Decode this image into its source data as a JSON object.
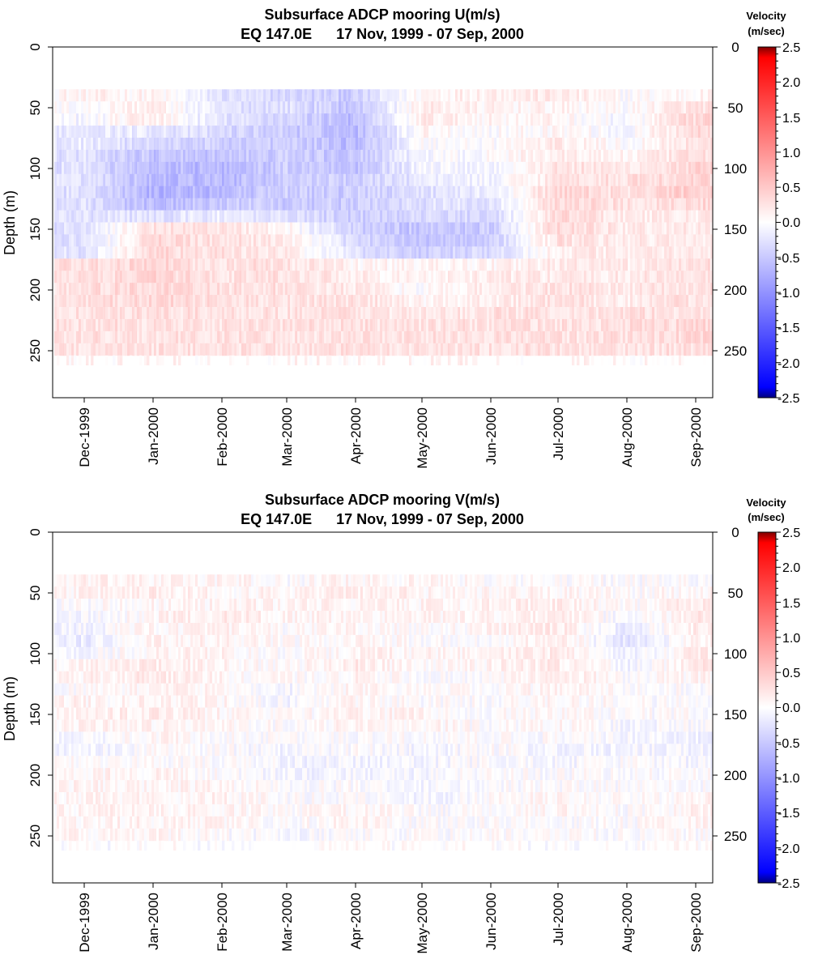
{
  "chart_data": [
    {
      "type": "heatmap",
      "title": "Subsurface ADCP mooring U(m/s)",
      "subtitle": "EQ 147.0E      17 Nov, 1999 - 07 Sep, 2000",
      "ylabel": "Depth (m)",
      "xlabel": "",
      "y_ticks": [
        "0",
        "50",
        "100",
        "150",
        "200",
        "250"
      ],
      "x_ticks": [
        "Dec-1999",
        "Jan-2000",
        "Feb-2000",
        "Mar-2000",
        "Apr-2000",
        "May-2000",
        "Jun-2000",
        "Jul-2000",
        "Aug-2000",
        "Sep-2000"
      ],
      "ylim": [
        290,
        0
      ],
      "colorbar": {
        "title_line1": "Velocity",
        "title_line2": "(m/sec)",
        "ticks": [
          "2.5",
          "2.0",
          "1.5",
          "1.0",
          "0.5",
          "0.0",
          "-0.5",
          "-1.0",
          "-1.5",
          "-2.0",
          "-2.5"
        ],
        "range": [
          -2.5,
          2.5
        ]
      },
      "depths": [
        40,
        50,
        60,
        70,
        80,
        90,
        100,
        110,
        120,
        130,
        140,
        150,
        160,
        170,
        180,
        190,
        200,
        210,
        220,
        230,
        240,
        250,
        260
      ],
      "months": [
        "Dec-1999",
        "Jan-2000",
        "Feb-2000",
        "Mar-2000",
        "Apr-2000",
        "May-2000",
        "Jun-2000",
        "Jul-2000",
        "Aug-2000",
        "Sep-2000"
      ],
      "approx_values": [
        [
          0.1,
          0.1,
          -0.3,
          -0.4,
          -0.5,
          0.1,
          0.2,
          0.2,
          0.0,
          0.1
        ],
        [
          0.0,
          0.2,
          -0.3,
          -0.3,
          -0.6,
          0.2,
          0.1,
          0.1,
          0.0,
          0.3
        ],
        [
          -0.1,
          0.2,
          -0.3,
          -0.4,
          -0.7,
          0.2,
          0.1,
          0.1,
          -0.1,
          0.4
        ],
        [
          -0.2,
          -0.2,
          -0.4,
          -0.5,
          -0.7,
          0.1,
          0.0,
          0.1,
          -0.1,
          0.4
        ],
        [
          -0.2,
          -0.4,
          -0.5,
          -0.5,
          -0.7,
          0.0,
          0.0,
          0.2,
          0.0,
          0.3
        ],
        [
          -0.3,
          -0.6,
          -0.6,
          -0.5,
          -0.6,
          -0.1,
          0.0,
          0.2,
          0.1,
          0.3
        ],
        [
          -0.3,
          -0.7,
          -0.7,
          -0.5,
          -0.6,
          -0.1,
          -0.1,
          0.3,
          0.2,
          0.4
        ],
        [
          -0.3,
          -0.7,
          -0.7,
          -0.5,
          -0.5,
          -0.2,
          -0.1,
          0.3,
          0.3,
          0.4
        ],
        [
          -0.3,
          -0.8,
          -0.7,
          -0.5,
          -0.5,
          -0.3,
          -0.2,
          0.4,
          0.3,
          0.5
        ],
        [
          -0.3,
          -0.7,
          -0.5,
          -0.5,
          -0.5,
          -0.3,
          -0.3,
          0.4,
          0.3,
          0.4
        ],
        [
          -0.3,
          -0.3,
          -0.2,
          -0.3,
          -0.5,
          -0.4,
          -0.4,
          0.4,
          0.2,
          0.2
        ],
        [
          -0.3,
          0.3,
          0.3,
          0.1,
          -0.5,
          -0.6,
          -0.5,
          0.4,
          0.2,
          0.2
        ],
        [
          -0.3,
          0.4,
          0.3,
          0.2,
          -0.4,
          -0.6,
          -0.5,
          0.3,
          0.2,
          0.2
        ],
        [
          -0.3,
          0.4,
          0.3,
          0.2,
          -0.3,
          -0.5,
          -0.4,
          0.2,
          0.2,
          0.2
        ],
        [
          0.3,
          0.4,
          0.3,
          0.3,
          0.1,
          0.1,
          0.1,
          0.2,
          0.2,
          0.3
        ],
        [
          0.3,
          0.4,
          0.3,
          0.3,
          0.2,
          0.1,
          0.2,
          0.2,
          0.2,
          0.3
        ],
        [
          0.3,
          0.4,
          0.3,
          0.3,
          0.2,
          0.0,
          0.2,
          0.3,
          0.2,
          0.3
        ],
        [
          0.3,
          0.4,
          0.3,
          0.3,
          0.3,
          0.1,
          0.2,
          0.3,
          0.2,
          0.3
        ],
        [
          0.3,
          0.3,
          0.3,
          0.3,
          0.3,
          0.2,
          0.3,
          0.3,
          0.3,
          0.3
        ],
        [
          0.3,
          0.3,
          0.3,
          0.3,
          0.3,
          0.3,
          0.3,
          0.3,
          0.3,
          0.4
        ],
        [
          0.3,
          0.3,
          0.3,
          0.3,
          0.3,
          0.3,
          0.3,
          0.3,
          0.3,
          0.4
        ],
        [
          0.3,
          0.3,
          0.3,
          0.3,
          0.3,
          0.3,
          0.3,
          0.3,
          0.3,
          0.3
        ],
        [
          0.1,
          0.1,
          0.1,
          0.1,
          0.1,
          0.1,
          0.1,
          0.1,
          0.1,
          0.1
        ]
      ]
    },
    {
      "type": "heatmap",
      "title": "Subsurface ADCP mooring V(m/s)",
      "subtitle": "EQ 147.0E      17 Nov, 1999 - 07 Sep, 2000",
      "ylabel": "Depth (m)",
      "xlabel": "",
      "y_ticks": [
        "0",
        "50",
        "100",
        "150",
        "200",
        "250"
      ],
      "x_ticks": [
        "Dec-1999",
        "Jan-2000",
        "Feb-2000",
        "Mar-2000",
        "Apr-2000",
        "May-2000",
        "Jun-2000",
        "Jul-2000",
        "Aug-2000",
        "Sep-2000"
      ],
      "ylim": [
        290,
        0
      ],
      "colorbar": {
        "title_line1": "Velocity",
        "title_line2": "(m/sec)",
        "ticks": [
          "2.5",
          "2.0",
          "1.5",
          "1.0",
          "0.5",
          "0.0",
          "-0.5",
          "-1.0",
          "-1.5",
          "-2.0",
          "-2.5"
        ],
        "range": [
          -2.5,
          2.5
        ]
      },
      "depths": [
        40,
        50,
        60,
        70,
        80,
        90,
        100,
        110,
        120,
        130,
        140,
        150,
        160,
        170,
        180,
        190,
        200,
        210,
        220,
        230,
        240,
        250,
        260
      ],
      "months": [
        "Dec-1999",
        "Jan-2000",
        "Feb-2000",
        "Mar-2000",
        "Apr-2000",
        "May-2000",
        "Jun-2000",
        "Jul-2000",
        "Aug-2000",
        "Sep-2000"
      ],
      "approx_values": [
        [
          0.1,
          0.1,
          0.1,
          0.0,
          0.1,
          0.1,
          0.0,
          0.0,
          0.0,
          0.0
        ],
        [
          0.1,
          0.2,
          0.1,
          0.1,
          0.2,
          0.1,
          0.1,
          0.1,
          0.0,
          0.1
        ],
        [
          0.0,
          0.1,
          0.1,
          0.1,
          0.1,
          0.1,
          0.1,
          0.2,
          0.0,
          0.2
        ],
        [
          -0.1,
          0.1,
          0.2,
          0.1,
          0.1,
          0.1,
          0.1,
          0.2,
          -0.1,
          0.2
        ],
        [
          -0.1,
          0.1,
          0.1,
          0.0,
          0.1,
          0.0,
          0.1,
          0.2,
          -0.2,
          0.2
        ],
        [
          -0.2,
          0.1,
          0.1,
          0.0,
          0.1,
          0.0,
          0.0,
          0.2,
          -0.3,
          0.1
        ],
        [
          -0.1,
          0.1,
          0.1,
          0.0,
          0.1,
          0.1,
          0.1,
          0.2,
          -0.2,
          0.2
        ],
        [
          0.1,
          0.2,
          0.1,
          0.0,
          0.2,
          0.0,
          0.1,
          0.2,
          -0.1,
          0.2
        ],
        [
          0.1,
          0.2,
          0.1,
          0.0,
          0.1,
          0.0,
          0.0,
          0.2,
          0.0,
          0.1
        ],
        [
          0.0,
          0.1,
          0.1,
          -0.1,
          0.1,
          0.0,
          0.0,
          0.1,
          0.0,
          0.0
        ],
        [
          0.1,
          0.1,
          0.1,
          -0.1,
          0.1,
          0.0,
          0.0,
          0.1,
          0.0,
          0.0
        ],
        [
          0.1,
          0.2,
          0.1,
          0.0,
          0.1,
          0.1,
          0.0,
          0.1,
          0.0,
          0.0
        ],
        [
          0.1,
          0.1,
          0.1,
          0.0,
          0.1,
          0.1,
          0.0,
          0.1,
          -0.1,
          0.0
        ],
        [
          -0.1,
          0.1,
          0.0,
          0.0,
          0.0,
          0.0,
          0.0,
          0.0,
          -0.1,
          -0.1
        ],
        [
          -0.1,
          0.0,
          0.0,
          -0.1,
          0.0,
          -0.1,
          0.0,
          -0.1,
          -0.1,
          -0.1
        ],
        [
          0.0,
          0.0,
          0.0,
          -0.1,
          -0.1,
          -0.1,
          0.0,
          -0.1,
          0.0,
          -0.1
        ],
        [
          0.1,
          0.1,
          0.0,
          -0.1,
          -0.1,
          -0.1,
          0.0,
          0.0,
          0.0,
          0.0
        ],
        [
          0.1,
          0.1,
          0.1,
          0.0,
          0.0,
          -0.1,
          0.0,
          0.0,
          0.0,
          0.0
        ],
        [
          0.1,
          0.1,
          0.1,
          0.0,
          0.0,
          -0.1,
          0.0,
          0.1,
          0.0,
          0.1
        ],
        [
          0.1,
          0.1,
          0.1,
          0.0,
          0.1,
          0.0,
          0.0,
          0.1,
          0.0,
          0.1
        ],
        [
          0.1,
          0.1,
          0.1,
          0.0,
          0.1,
          0.0,
          0.0,
          0.0,
          0.0,
          0.1
        ],
        [
          0.1,
          0.1,
          0.0,
          -0.1,
          0.0,
          0.0,
          0.0,
          0.0,
          0.0,
          0.0
        ],
        [
          0.0,
          0.0,
          0.0,
          0.0,
          0.0,
          0.0,
          0.0,
          0.0,
          0.0,
          0.0
        ]
      ]
    }
  ],
  "colors": {
    "negative_max": "#0000ff",
    "negative_end": "#000080",
    "positive_max": "#ff0000",
    "positive_end": "#800000",
    "zero": "#ffffff"
  }
}
